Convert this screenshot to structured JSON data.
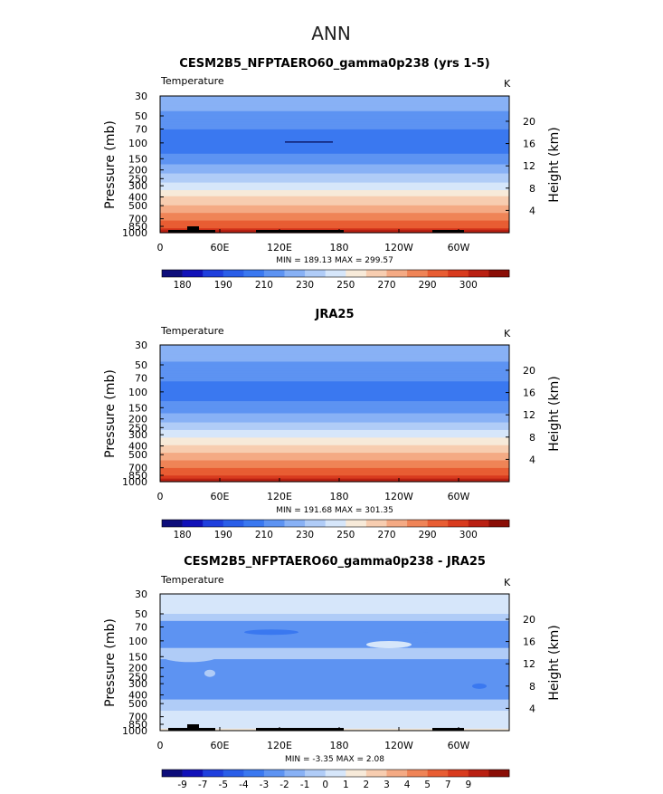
{
  "page_title": "ANN",
  "panels": [
    {
      "title": "CESM2B5_NFPTAERO60_gamma0p238 (yrs 1-5)",
      "variable": "Temperature",
      "units": "K",
      "ylabel_left": "Pressure  (mb)",
      "ylabel_right": "Height  (km)",
      "min_max": "MIN  =  189.13   MAX  =  299.57",
      "chart_data": {
        "type": "heatmap",
        "title": "CESM2B5_NFPTAERO60_gamma0p238 (yrs 1-5)",
        "field": "Temperature (K), annual mean, pressure vs longitude",
        "x_ticks": [
          "0",
          "60E",
          "120E",
          "180",
          "120W",
          "60W"
        ],
        "y_ticks_pressure": [
          "30",
          "50",
          "70",
          "100",
          "150",
          "200",
          "250",
          "300",
          "400",
          "500",
          "700",
          "850",
          "1000"
        ],
        "y_ticks_height": [
          "20",
          "16",
          "12",
          "8",
          "4"
        ],
        "ylim_mb": [
          1000,
          30
        ],
        "min": 189.13,
        "max": 299.57,
        "profile": [
          [
            30,
            218
          ],
          [
            40,
            212
          ],
          [
            50,
            207
          ],
          [
            60,
            203
          ],
          [
            70,
            200
          ],
          [
            85,
            198
          ],
          [
            100,
            197
          ],
          [
            120,
            198
          ],
          [
            150,
            204
          ],
          [
            180,
            211
          ],
          [
            200,
            216
          ],
          [
            230,
            222
          ],
          [
            250,
            226
          ],
          [
            300,
            235
          ],
          [
            350,
            243
          ],
          [
            400,
            250
          ],
          [
            450,
            256
          ],
          [
            500,
            261
          ],
          [
            600,
            270
          ],
          [
            700,
            278
          ],
          [
            800,
            285
          ],
          [
            850,
            288
          ],
          [
            925,
            294
          ],
          [
            1000,
            299
          ]
        ]
      },
      "colorbar": {
        "labels": [
          "180",
          "190",
          "210",
          "230",
          "250",
          "270",
          "290",
          "300"
        ],
        "colors": [
          "#0d0d7a",
          "#1111b8",
          "#1f3fdd",
          "#2a5ee8",
          "#3a78f0",
          "#5d93f2",
          "#88b1f5",
          "#b0ccf7",
          "#d6e6fa",
          "#f7ead9",
          "#f7cdb0",
          "#f4aa84",
          "#ef8457",
          "#e85d33",
          "#d83b1e",
          "#b92012",
          "#8a0e06"
        ]
      }
    },
    {
      "title": "JRA25",
      "variable": "Temperature",
      "units": "K",
      "ylabel_left": "Pressure  (mb)",
      "ylabel_right": "Height  (km)",
      "min_max": "MIN  =  191.68   MAX  =  301.35",
      "chart_data": {
        "type": "heatmap",
        "title": "JRA25",
        "field": "Temperature (K), annual mean, pressure vs longitude",
        "x_ticks": [
          "0",
          "60E",
          "120E",
          "180",
          "120W",
          "60W"
        ],
        "y_ticks_pressure": [
          "30",
          "50",
          "70",
          "100",
          "150",
          "200",
          "250",
          "300",
          "400",
          "500",
          "700",
          "850",
          "1000"
        ],
        "y_ticks_height": [
          "20",
          "16",
          "12",
          "8",
          "4"
        ],
        "ylim_mb": [
          1000,
          30
        ],
        "min": 191.68,
        "max": 301.35,
        "profile": [
          [
            30,
            218
          ],
          [
            40,
            213
          ],
          [
            50,
            208
          ],
          [
            60,
            204
          ],
          [
            70,
            201
          ],
          [
            85,
            199
          ],
          [
            100,
            198
          ],
          [
            120,
            199
          ],
          [
            150,
            205
          ],
          [
            180,
            212
          ],
          [
            200,
            217
          ],
          [
            230,
            223
          ],
          [
            250,
            227
          ],
          [
            300,
            236
          ],
          [
            350,
            244
          ],
          [
            400,
            251
          ],
          [
            450,
            257
          ],
          [
            500,
            262
          ],
          [
            600,
            271
          ],
          [
            700,
            279
          ],
          [
            800,
            286
          ],
          [
            850,
            290
          ],
          [
            925,
            296
          ],
          [
            1000,
            301
          ]
        ]
      },
      "colorbar": {
        "labels": [
          "180",
          "190",
          "210",
          "230",
          "250",
          "270",
          "290",
          "300"
        ],
        "colors": [
          "#0d0d7a",
          "#1111b8",
          "#1f3fdd",
          "#2a5ee8",
          "#3a78f0",
          "#5d93f2",
          "#88b1f5",
          "#b0ccf7",
          "#d6e6fa",
          "#f7ead9",
          "#f7cdb0",
          "#f4aa84",
          "#ef8457",
          "#e85d33",
          "#d83b1e",
          "#b92012",
          "#8a0e06"
        ]
      }
    },
    {
      "title": "CESM2B5_NFPTAERO60_gamma0p238 - JRA25",
      "variable": "Temperature",
      "units": "K",
      "ylabel_left": "Pressure  (mb)",
      "ylabel_right": "Height  (km)",
      "min_max": "MIN  =   -3.35   MAX  =    2.08",
      "chart_data": {
        "type": "heatmap",
        "title": "CESM2B5_NFPTAERO60_gamma0p238 - JRA25",
        "field": "Temperature difference (K), model minus JRA25",
        "x_ticks": [
          "0",
          "60E",
          "120E",
          "180",
          "120W",
          "60W"
        ],
        "y_ticks_pressure": [
          "30",
          "50",
          "70",
          "100",
          "150",
          "200",
          "250",
          "300",
          "400",
          "500",
          "700",
          "850",
          "1000"
        ],
        "y_ticks_height": [
          "20",
          "16",
          "12",
          "8",
          "4"
        ],
        "ylim_mb": [
          1000,
          30
        ],
        "min": -3.35,
        "max": 2.08,
        "bands": [
          {
            "from_mb": 30,
            "to_mb": 50,
            "level": -0.5
          },
          {
            "from_mb": 50,
            "to_mb": 60,
            "level": -1.5
          },
          {
            "from_mb": 60,
            "to_mb": 120,
            "level": -2.5
          },
          {
            "from_mb": 120,
            "to_mb": 160,
            "level": -1.5
          },
          {
            "from_mb": 160,
            "to_mb": 450,
            "level": -2.5
          },
          {
            "from_mb": 450,
            "to_mb": 600,
            "level": -1.5
          },
          {
            "from_mb": 600,
            "to_mb": 950,
            "level": -0.5
          },
          {
            "from_mb": 950,
            "to_mb": 1000,
            "level": 0.5
          }
        ]
      },
      "colorbar": {
        "labels": [
          "-9",
          "-7",
          "-5",
          "-4",
          "-3",
          "-2",
          "-1",
          "0",
          "1",
          "2",
          "3",
          "4",
          "5",
          "7",
          "9"
        ],
        "colors": [
          "#0d0d7a",
          "#1111b8",
          "#1f3fdd",
          "#2a5ee8",
          "#3a78f0",
          "#5d93f2",
          "#88b1f5",
          "#b0ccf7",
          "#d6e6fa",
          "#f7ead9",
          "#f7cdb0",
          "#f4aa84",
          "#ef8457",
          "#e85d33",
          "#d83b1e",
          "#b92012",
          "#8a0e06"
        ]
      }
    }
  ]
}
